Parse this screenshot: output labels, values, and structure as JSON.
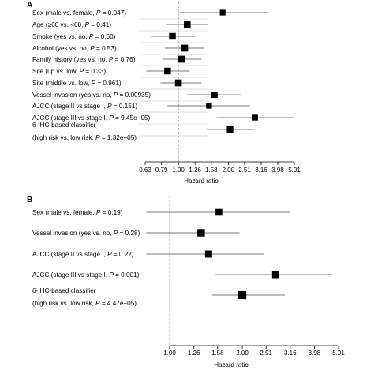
{
  "chart_data": [
    {
      "type": "forest",
      "panel_label": "A",
      "xlabel": "Hazard ratio",
      "xscale": "log",
      "xticks": [
        "0.63",
        "0.79",
        "1.00",
        "1.26",
        "1.58",
        "2.00",
        "2.51",
        "3.16",
        "3.98",
        "5.01"
      ],
      "xlim": [
        0.63,
        5.01
      ],
      "reference_line": 1.0,
      "rows": [
        {
          "label": "Sex (male vs. female, ",
          "p_text": "P",
          "p_value": " = 0.047)",
          "hr": 1.85,
          "lo": 1.01,
          "hi": 3.5
        },
        {
          "label": "Age (≥60 vs. <60, ",
          "p_text": "P",
          "p_value": " = 0.41)",
          "hr": 1.13,
          "lo": 0.84,
          "hi": 1.5
        },
        {
          "label": "Smoke (yes vs. no, ",
          "p_text": "P",
          "p_value": " = 0.60)",
          "hr": 0.92,
          "lo": 0.68,
          "hi": 1.26
        },
        {
          "label": "Alcohol (yes vs. no, ",
          "p_text": "P",
          "p_value": " = 0.53)",
          "hr": 1.09,
          "lo": 0.83,
          "hi": 1.44
        },
        {
          "label": "Family history (yes vs. no, ",
          "p_text": "P",
          "p_value": " = 0.76)",
          "hr": 1.04,
          "lo": 0.8,
          "hi": 1.38
        },
        {
          "label": "Site (up vs. low, ",
          "p_text": "P",
          "p_value": " = 0.33)",
          "hr": 0.86,
          "lo": 0.64,
          "hi": 1.17
        },
        {
          "label": "Site (middle vs. low, ",
          "p_text": "P",
          "p_value": " = 0.961)",
          "hr": 1.0,
          "lo": 0.78,
          "hi": 1.38
        },
        {
          "label": "Vessel invasion (yes vs. no, ",
          "p_text": "P",
          "p_value": " = 0.00935)",
          "hr": 1.65,
          "lo": 1.13,
          "hi": 2.4
        },
        {
          "label": "AJCC (stage II vs stage I, ",
          "p_text": "P",
          "p_value": " = 0.151)",
          "hr": 1.53,
          "lo": 0.86,
          "hi": 2.7
        },
        {
          "label": "AJCC (stage III vs stage I, ",
          "p_text": "P",
          "p_value": " = 9.45e−05)",
          "hr": 2.9,
          "lo": 1.7,
          "hi": 5.0
        },
        {
          "label": "6-IHC-based classifier",
          "label2": "(high risk vs. low risk, ",
          "p_text": "P",
          "p_value": " = 1.32e−05)",
          "hr": 2.05,
          "lo": 1.48,
          "hi": 2.9
        }
      ]
    },
    {
      "type": "forest",
      "panel_label": "B",
      "xlabel": "Hazard ratio",
      "xscale": "log",
      "xticks": [
        "1.00",
        "1.26",
        "1.58",
        "2.00",
        "2.51",
        "3.16",
        "3.98",
        "5.01"
      ],
      "xlim": [
        1.0,
        5.01
      ],
      "reference_line": 1.0,
      "rows": [
        {
          "label": "Sex (male vs. female, ",
          "p_text": "P",
          "p_value": " = 0.19)",
          "hr": 1.6,
          "lo": 0.8,
          "hi": 3.15
        },
        {
          "label": "Vessel invasion (yes vs. no, ",
          "p_text": "P",
          "p_value": " = 0.28)",
          "hr": 1.35,
          "lo": 0.8,
          "hi": 1.95
        },
        {
          "label": "AJCC (stage II vs stage I, ",
          "p_text": "P",
          "p_value": " = 0.22)",
          "hr": 1.45,
          "lo": 0.8,
          "hi": 2.45
        },
        {
          "label": "AJCC (stage III vs stage I, ",
          "p_text": "P",
          "p_value": " = 0.001)",
          "hr": 2.75,
          "lo": 1.55,
          "hi": 4.7
        },
        {
          "label": "6-IHC-based classifier",
          "label2": "(high risk vs. low risk, ",
          "p_text": "P",
          "p_value": " = 4.47e−05)",
          "hr": 2.0,
          "lo": 1.5,
          "hi": 3.0
        }
      ]
    }
  ]
}
